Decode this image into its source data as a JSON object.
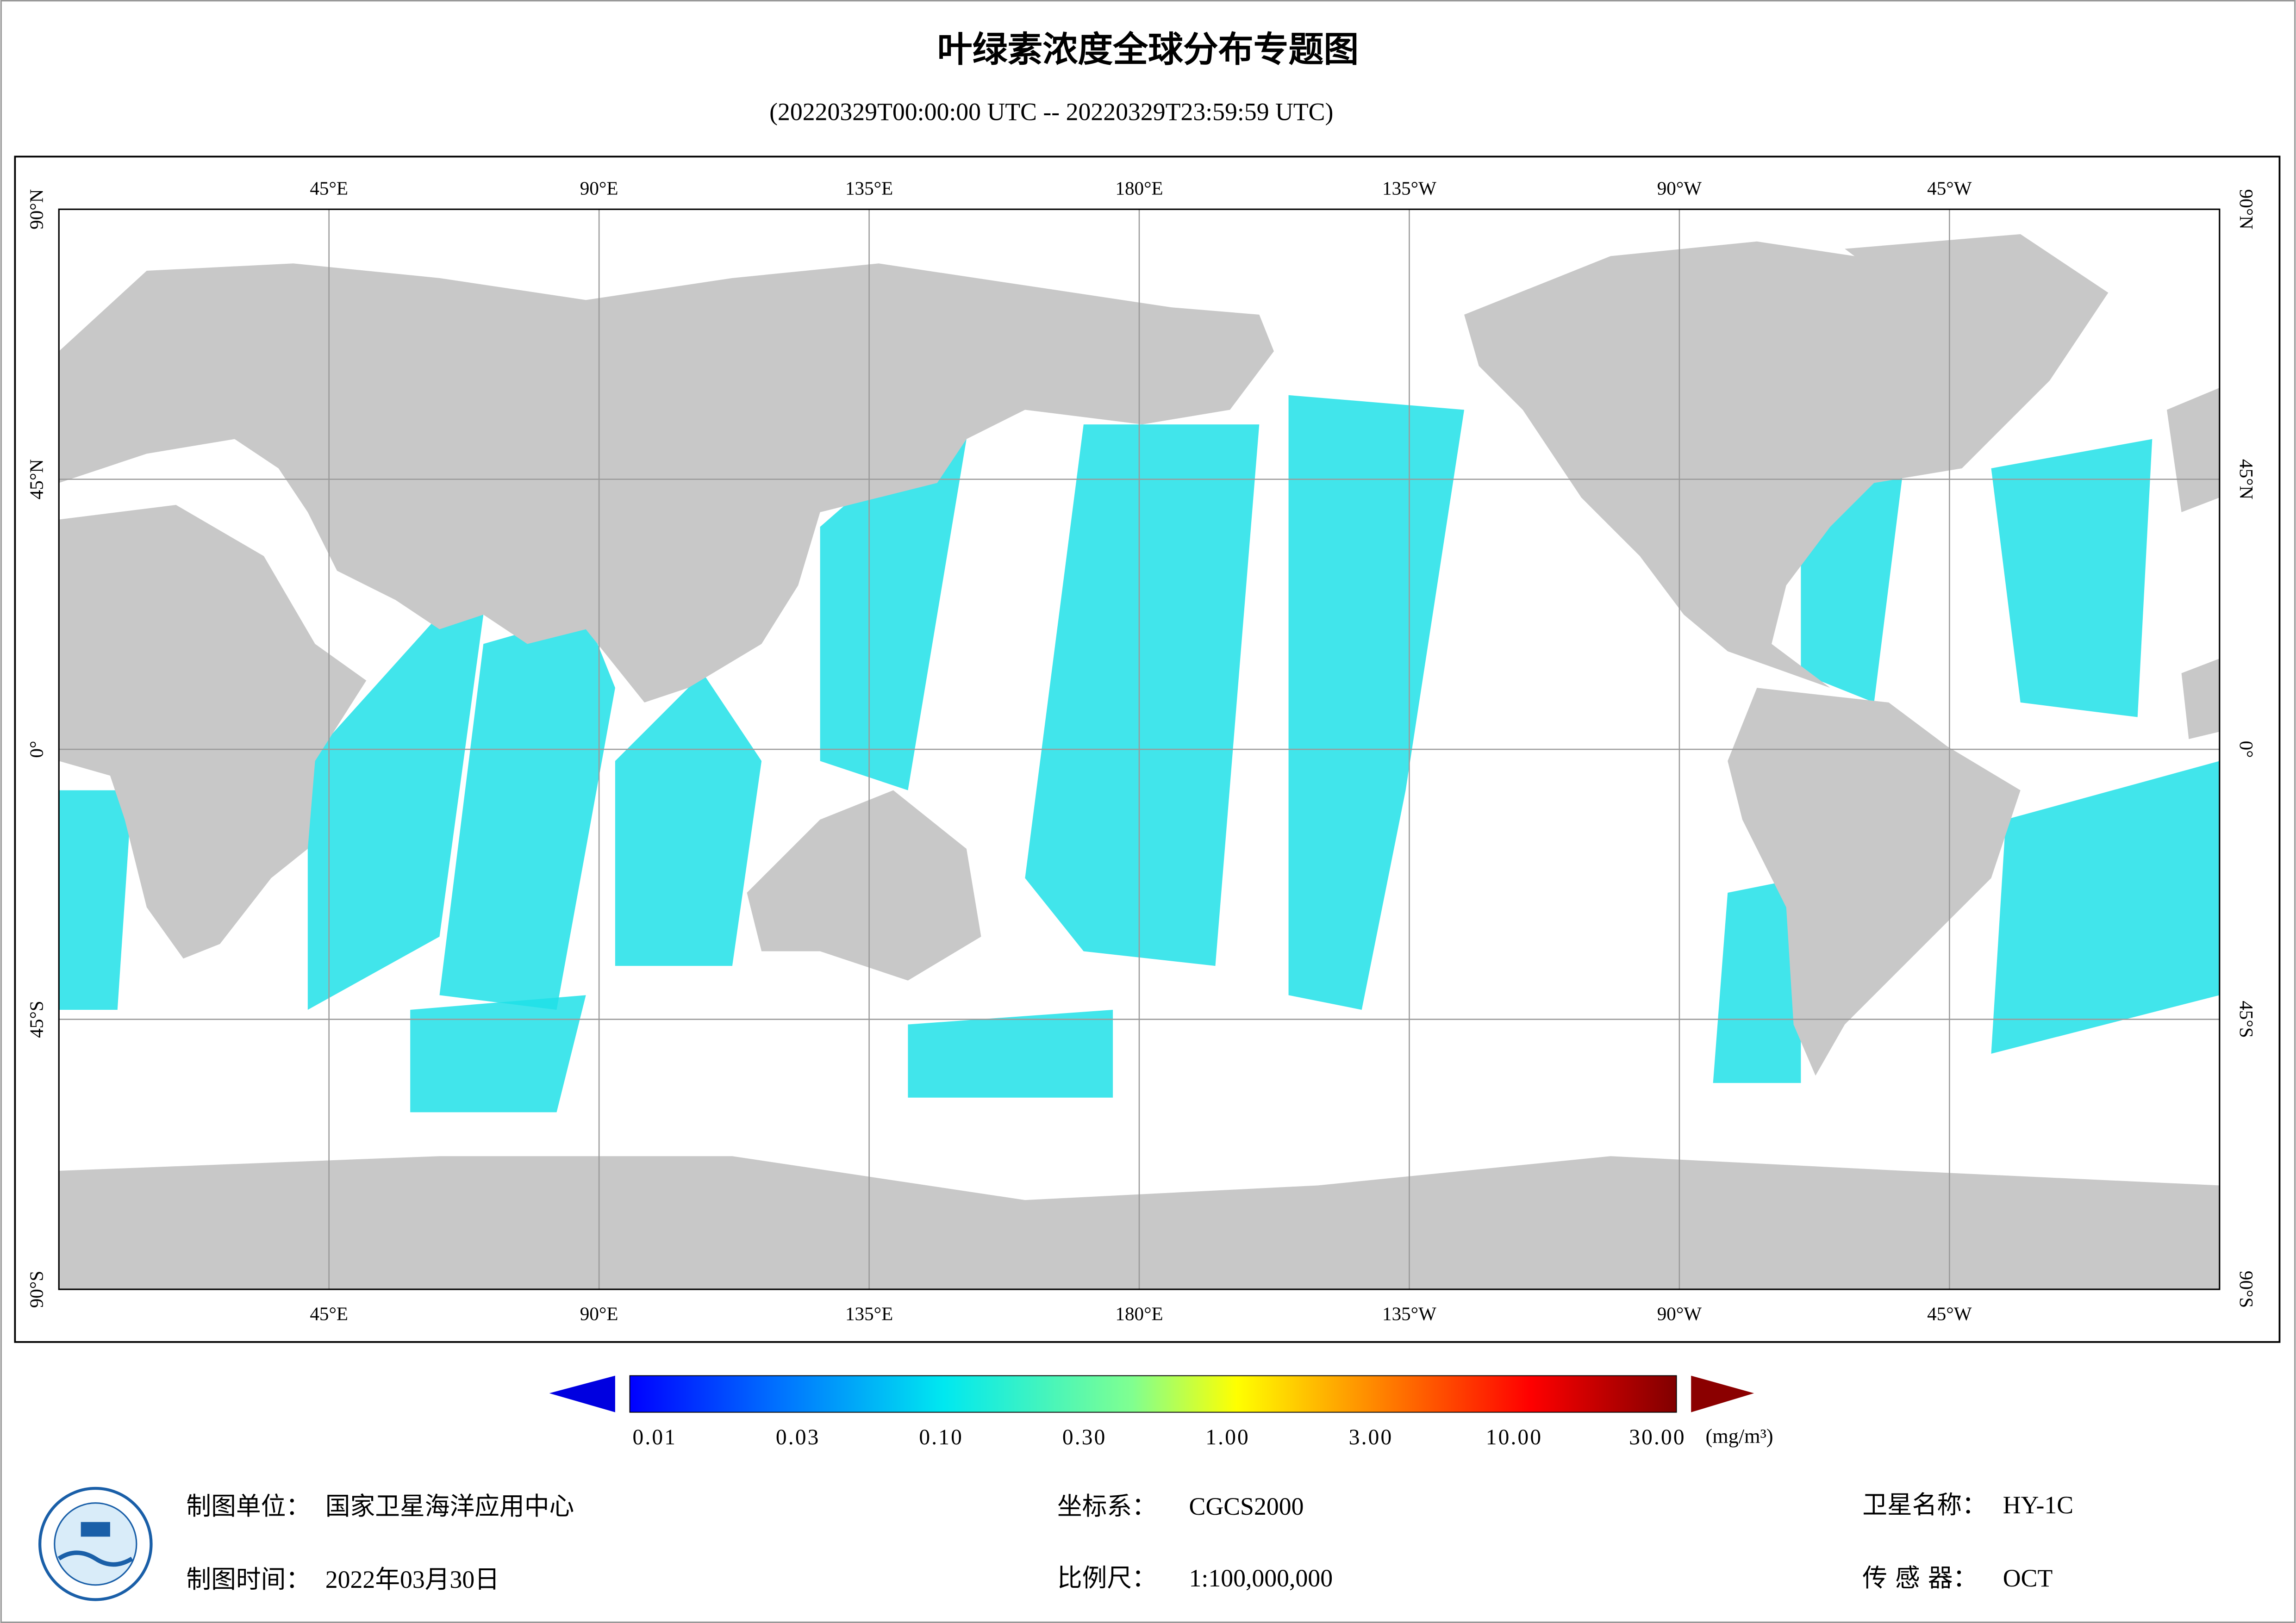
{
  "header": {
    "title": "叶绿素浓度全球分布专题图",
    "subtitle": "(20220329T00:00:00 UTC -- 20220329T23:59:59 UTC)"
  },
  "map": {
    "lon_labels": [
      "45°E",
      "90°E",
      "135°E",
      "180°E",
      "135°W",
      "90°W",
      "45°W"
    ],
    "lat_labels": [
      "90°N",
      "45°N",
      "0°",
      "45°S",
      "90°S"
    ]
  },
  "colorbar": {
    "labels": [
      "0.01",
      "0.03",
      "0.10",
      "0.30",
      "1.00",
      "3.00",
      "10.00",
      "30.00"
    ],
    "unit": "(mg/m³)"
  },
  "footer": {
    "unit_key": "制图单位：",
    "unit_value": "国家卫星海洋应用中心",
    "time_key": "制图时间：",
    "time_value": "2022年03月30日",
    "crs_key": "坐标系：",
    "crs_value": "CGCS2000",
    "scale_key": "比例尺：",
    "scale_value": "1:100,000,000",
    "satellite_key": "卫星名称：",
    "satellite_value": "HY-1C",
    "sensor_key": "传 感 器：",
    "sensor_value": "OCT"
  }
}
